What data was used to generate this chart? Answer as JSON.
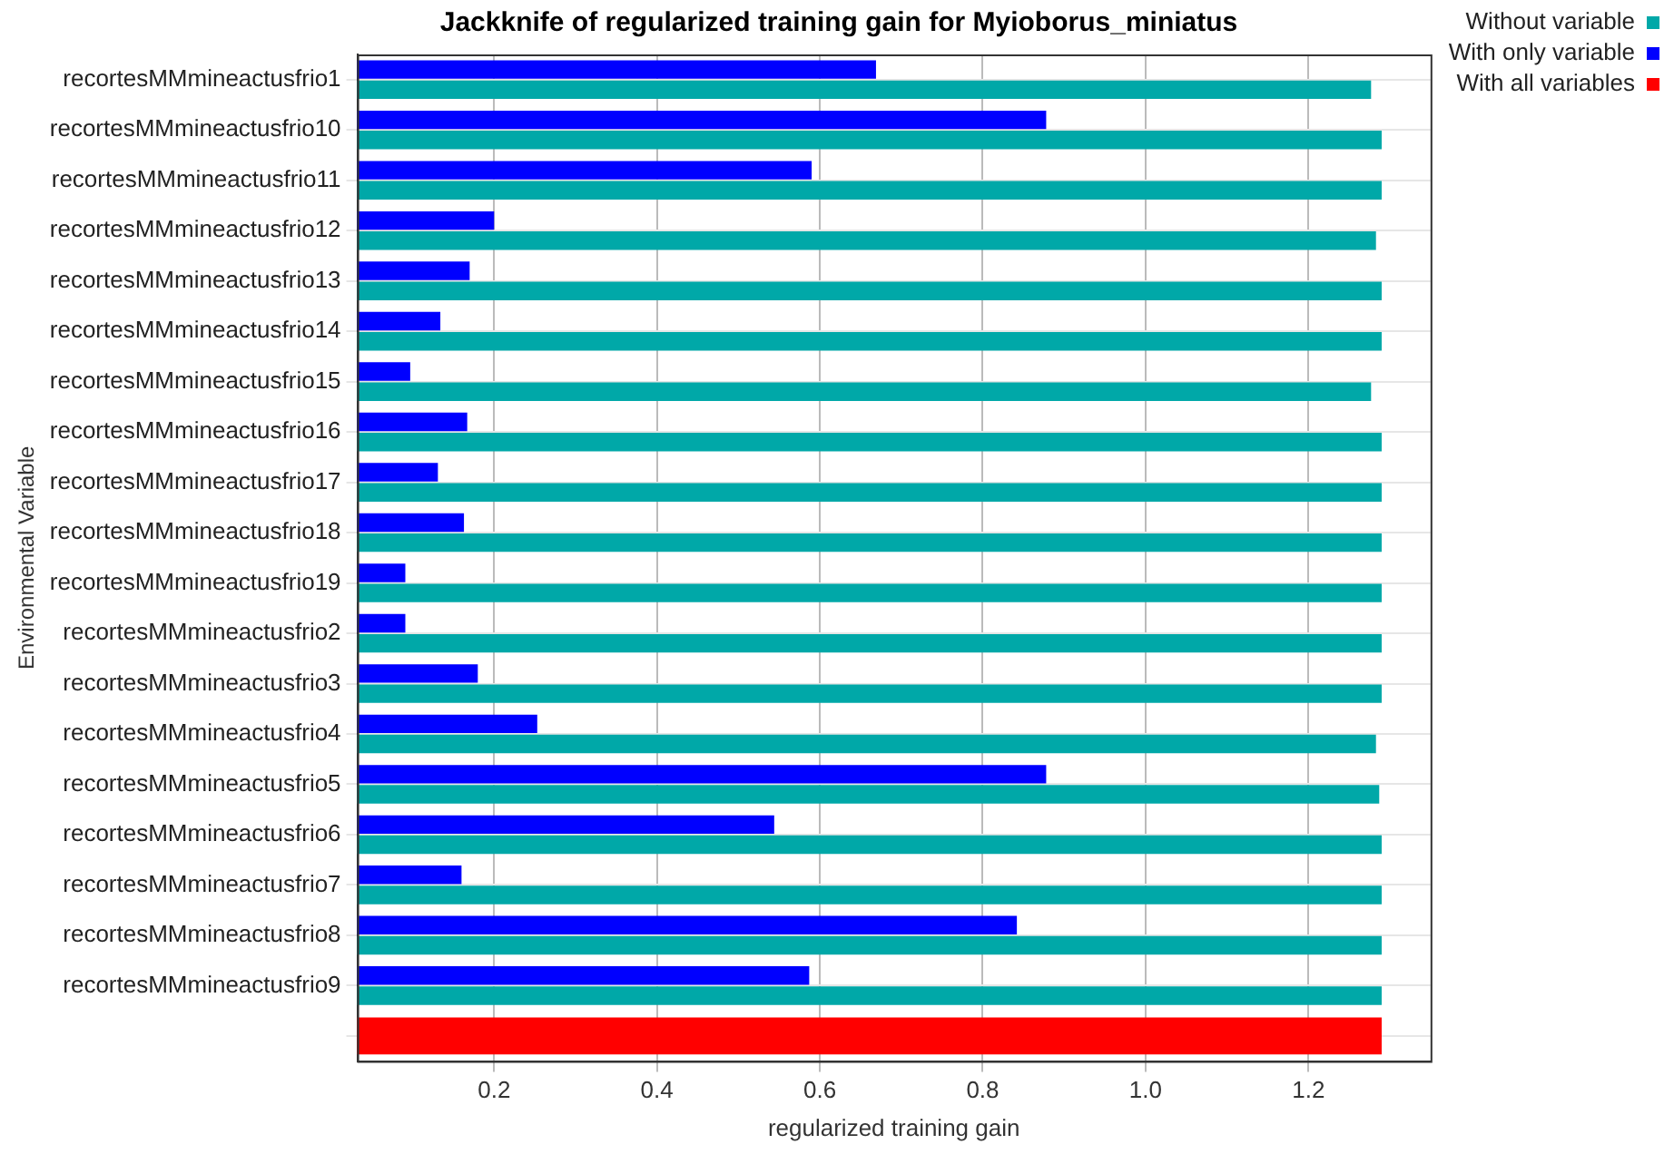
{
  "chart_data": {
    "type": "bar",
    "orientation": "horizontal",
    "title": "Jackknife of regularized training gain for Myioborus_miniatus",
    "xlabel": "regularized training gain",
    "ylabel": "Environmental Variable",
    "categories": [
      "recortesMMmineactusfrio1",
      "recortesMMmineactusfrio10",
      "recortesMMmineactusfrio11",
      "recortesMMmineactusfrio12",
      "recortesMMmineactusfrio13",
      "recortesMMmineactusfrio14",
      "recortesMMmineactusfrio15",
      "recortesMMmineactusfrio16",
      "recortesMMmineactusfrio17",
      "recortesMMmineactusfrio18",
      "recortesMMmineactusfrio19",
      "recortesMMmineactusfrio2",
      "recortesMMmineactusfrio3",
      "recortesMMmineactusfrio4",
      "recortesMMmineactusfrio5",
      "recortesMMmineactusfrio6",
      "recortesMMmineactusfrio7",
      "recortesMMmineactusfrio8",
      "recortesMMmineactusfrio9",
      null
    ],
    "series": [
      {
        "name": "Without variable",
        "color": "#00a8a8",
        "values": [
          1.277,
          1.29,
          1.29,
          1.283,
          1.29,
          1.29,
          1.277,
          1.29,
          1.29,
          1.29,
          1.29,
          1.29,
          1.29,
          1.283,
          1.287,
          1.29,
          1.29,
          1.29,
          1.29,
          null
        ]
      },
      {
        "name": "With only variable",
        "color": "#0000ff",
        "values": [
          0.669,
          0.878,
          0.59,
          0.2,
          0.17,
          0.134,
          0.097,
          0.167,
          0.131,
          0.163,
          0.091,
          0.091,
          0.18,
          0.253,
          0.878,
          0.544,
          0.16,
          0.842,
          0.587,
          null
        ]
      },
      {
        "name": "With all variables",
        "color": "#ff0000",
        "values": [
          null,
          null,
          null,
          null,
          null,
          null,
          null,
          null,
          null,
          null,
          null,
          null,
          null,
          null,
          null,
          null,
          null,
          null,
          null,
          1.29
        ]
      }
    ],
    "xlim": [
      0.032,
      1.35
    ],
    "xticks": [
      0.2,
      0.4,
      0.6,
      0.8,
      {
        "value": 1,
        "label": "1.0"
      },
      1.2
    ],
    "grid": true,
    "legend": "top right"
  }
}
